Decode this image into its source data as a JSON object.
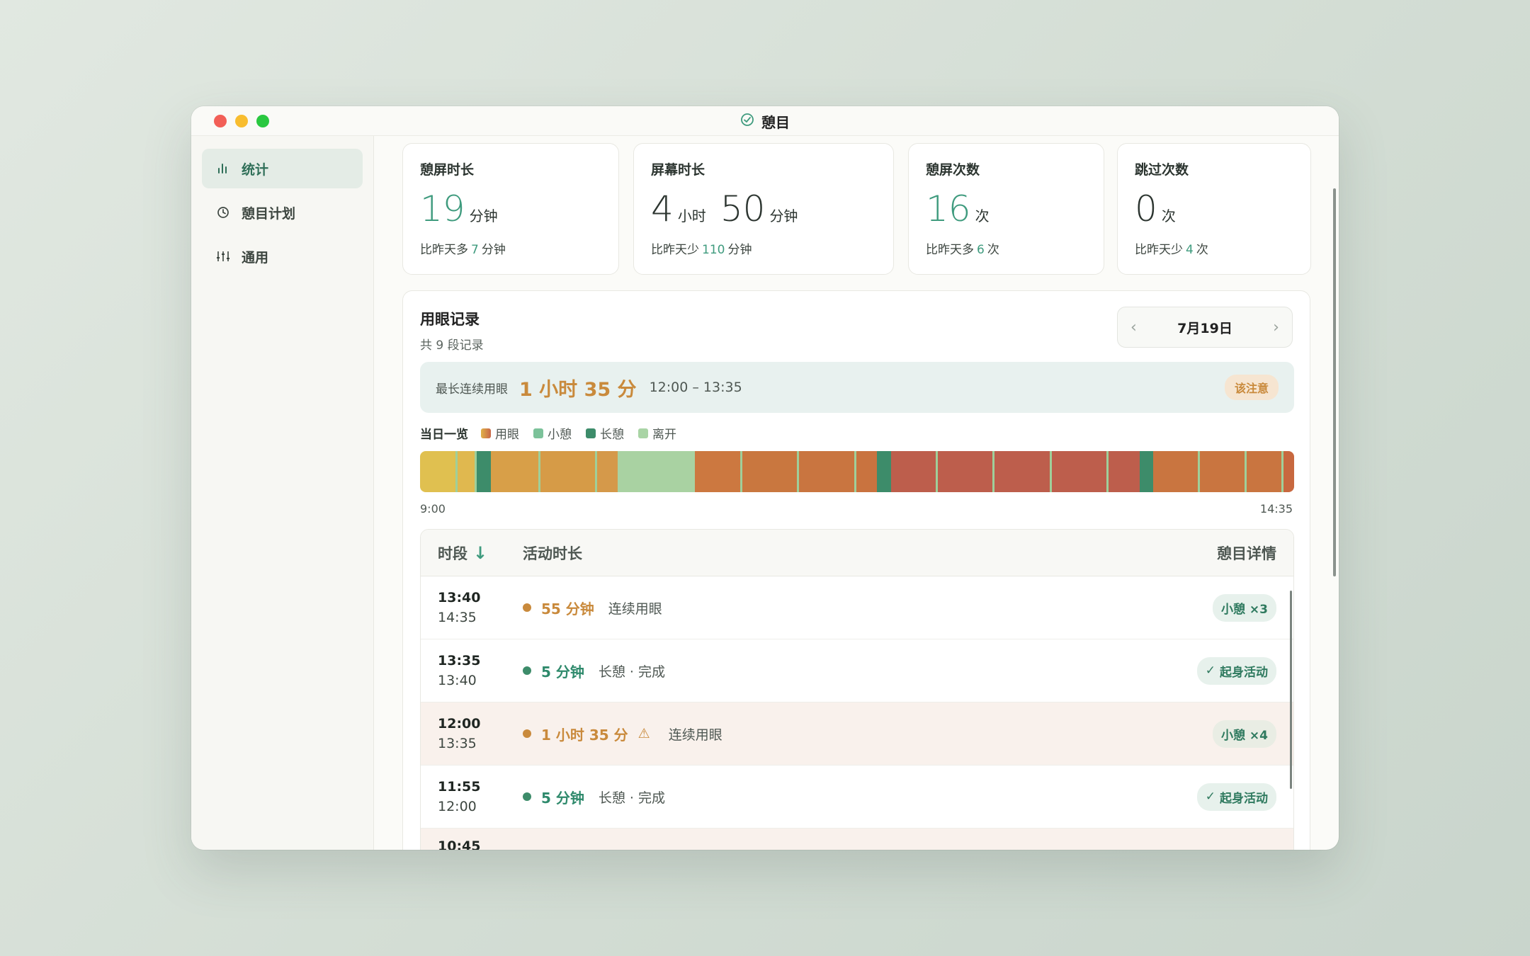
{
  "app": {
    "title": "憩目"
  },
  "sidebar": {
    "items": [
      {
        "label": "统计",
        "icon": "bar-chart-icon",
        "active": true
      },
      {
        "label": "憩目计划",
        "icon": "clock-icon",
        "active": false
      },
      {
        "label": "通用",
        "icon": "sliders-icon",
        "active": false
      }
    ]
  },
  "stats": {
    "rest_screen": {
      "label": "憩屏时长",
      "value": "19",
      "unit": "分钟",
      "compare_prefix": "比昨天多",
      "compare_value": "7",
      "compare_unit": "分钟"
    },
    "screen_time": {
      "label": "屏幕时长",
      "hours": "4",
      "hours_unit": "小时",
      "minutes": "50",
      "minutes_unit": "分钟",
      "compare_prefix": "比昨天少",
      "compare_value": "110",
      "compare_unit": "分钟"
    },
    "rest_count": {
      "label": "憩屏次数",
      "value": "16",
      "unit": "次",
      "compare_prefix": "比昨天多",
      "compare_value": "6",
      "compare_unit": "次"
    },
    "skip_count": {
      "label": "跳过次数",
      "value": "0",
      "unit": "次",
      "compare_prefix": "比昨天少",
      "compare_value": "4",
      "compare_unit": "次"
    }
  },
  "records": {
    "title": "用眼记录",
    "subtitle": "共 9 段记录",
    "date": "7月19日",
    "longest": {
      "label": "最长连续用眼",
      "value": "1 小时 35 分",
      "range": "12:00 – 13:35",
      "badge": "该注意"
    },
    "legend": {
      "title": "当日一览",
      "items": [
        "用眼",
        "小憩",
        "长憩",
        "离开"
      ]
    },
    "axis": {
      "start": "9:00",
      "end": "14:35"
    },
    "table": {
      "headers": {
        "time": "时段",
        "activity": "活动时长",
        "detail": "憩目详情"
      },
      "rows": [
        {
          "start": "13:40",
          "end": "14:35",
          "duration": "55 分钟",
          "type": "use",
          "desc": "连续用眼",
          "detail": "小憩 ×3",
          "warn": false
        },
        {
          "start": "13:35",
          "end": "13:40",
          "duration": "5 分钟",
          "type": "rest",
          "desc": "长憩 · 完成",
          "detail": "起身活动",
          "warn": false
        },
        {
          "start": "12:00",
          "end": "13:35",
          "duration": "1 小时 35 分",
          "type": "use",
          "desc": "连续用眼",
          "detail": "小憩 ×4",
          "warn": true
        },
        {
          "start": "11:55",
          "end": "12:00",
          "duration": "5 分钟",
          "type": "rest",
          "desc": "长憩 · 完成",
          "detail": "起身活动",
          "warn": false
        },
        {
          "start": "10:45",
          "end": "",
          "duration": "",
          "type": "use",
          "desc": "",
          "detail": "",
          "warn": true
        }
      ]
    }
  },
  "colors": {
    "accent": "#3f9b7e",
    "warn": "#c98a3c",
    "rest_short": "#7cc29a",
    "rest_long": "#3d8c6a",
    "away": "#a9d4a5"
  }
}
